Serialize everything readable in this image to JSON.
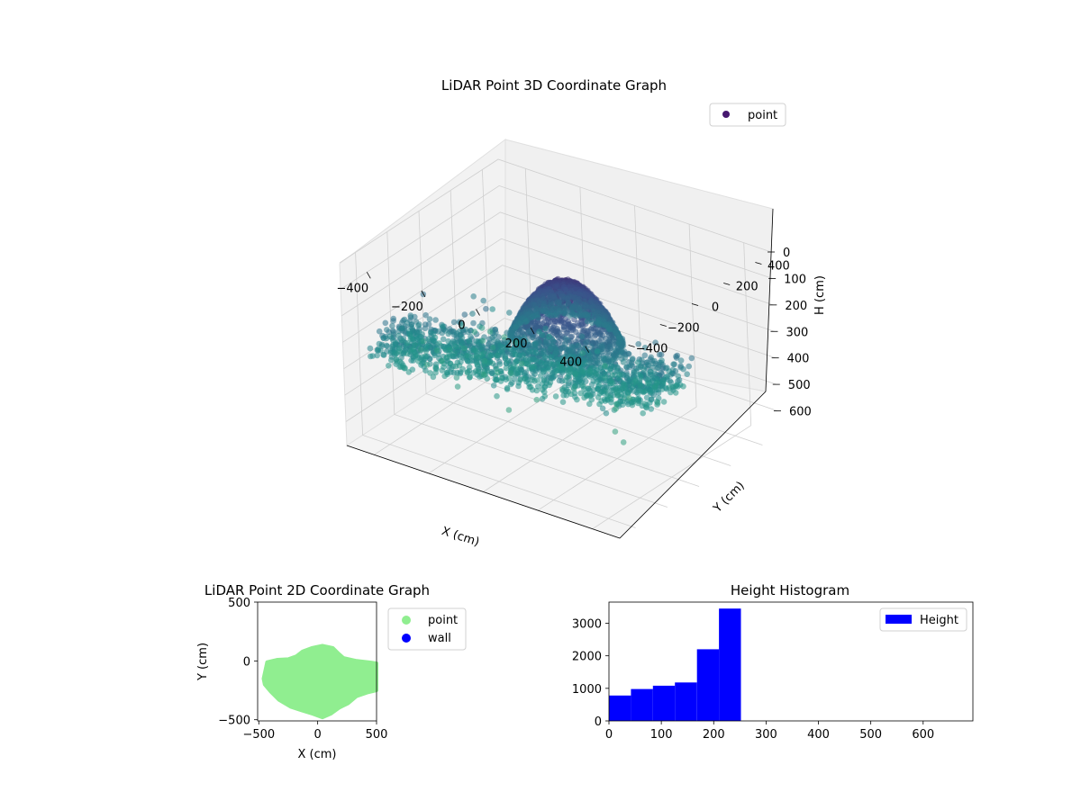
{
  "chart_data": [
    {
      "type": "scatter3d",
      "title": "LiDAR Point 3D Coordinate Graph",
      "xlabel": "X (cm)",
      "ylabel": "Y (cm)",
      "zlabel": "H (cm)",
      "x_ticks": [
        -400,
        -200,
        0,
        200,
        400
      ],
      "y_ticks": [
        -400,
        -200,
        0,
        200,
        400
      ],
      "z_ticks": [
        0,
        100,
        200,
        300,
        400,
        500,
        600
      ],
      "xlim": [
        -500,
        500
      ],
      "ylim": [
        -500,
        500
      ],
      "zlim": [
        0,
        690
      ],
      "z_inverted": true,
      "colormap": "viridis",
      "grid": true,
      "legend": {
        "position": "top-right",
        "entries": [
          {
            "name": "point",
            "color": "#46186f"
          }
        ]
      },
      "shape": {
        "dome": {
          "center_x": 30,
          "center_y": 0,
          "radius": 200,
          "top_h": 80,
          "base_h": 300
        },
        "wings": {
          "x_range": [
            -450,
            420
          ],
          "y_range": [
            -450,
            150
          ],
          "h_range": [
            280,
            400
          ]
        }
      }
    },
    {
      "type": "scatter",
      "title": "LiDAR Point 2D Coordinate Graph",
      "xlabel": "X (cm)",
      "ylabel": "Y (cm)",
      "x_ticks": [
        -500,
        0,
        500
      ],
      "y_ticks": [
        500,
        0,
        -500
      ],
      "xlim": [
        -510,
        500
      ],
      "ylim": [
        -510,
        500
      ],
      "legend": {
        "position": "outside-right",
        "entries": [
          {
            "name": "point",
            "color": "#90ee90"
          },
          {
            "name": "wall",
            "color": "#0000ff"
          }
        ]
      },
      "outline": [
        [
          -460,
          -150
        ],
        [
          -430,
          -10
        ],
        [
          -340,
          10
        ],
        [
          -250,
          15
        ],
        [
          -180,
          40
        ],
        [
          -130,
          80
        ],
        [
          -50,
          110
        ],
        [
          40,
          130
        ],
        [
          130,
          110
        ],
        [
          180,
          60
        ],
        [
          220,
          25
        ],
        [
          330,
          0
        ],
        [
          430,
          -10
        ],
        [
          500,
          -20
        ],
        [
          500,
          -250
        ],
        [
          420,
          -270
        ],
        [
          330,
          -300
        ],
        [
          260,
          -360
        ],
        [
          180,
          -400
        ],
        [
          110,
          -450
        ],
        [
          40,
          -480
        ],
        [
          -40,
          -450
        ],
        [
          -140,
          -420
        ],
        [
          -230,
          -390
        ],
        [
          -330,
          -330
        ],
        [
          -400,
          -260
        ],
        [
          -450,
          -200
        ]
      ]
    },
    {
      "type": "bar",
      "title": "Height Histogram",
      "x_ticks": [
        0,
        100,
        200,
        300,
        400,
        500,
        600
      ],
      "y_ticks": [
        0,
        1000,
        2000,
        3000
      ],
      "xlim": [
        0,
        695
      ],
      "ylim": [
        0,
        3650
      ],
      "bin_edges": [
        0,
        42,
        84,
        126,
        168,
        210,
        252
      ],
      "values": [
        780,
        980,
        1080,
        1180,
        2200,
        3450
      ],
      "color": "#0000ff",
      "legend": {
        "position": "top-right",
        "entries": [
          {
            "name": "Height",
            "color": "#0000ff"
          }
        ]
      }
    }
  ]
}
